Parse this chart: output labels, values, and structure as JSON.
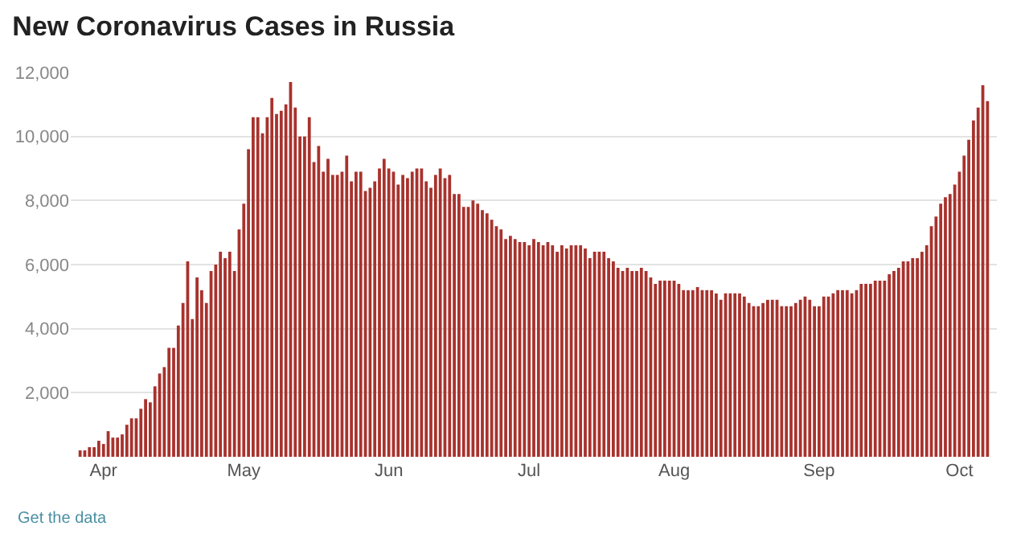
{
  "chart_data": {
    "type": "bar",
    "title": "New Coronavirus Cases in Russia",
    "annotations": [
      "Get the data"
    ],
    "x": [
      "--03-27",
      "--03-28",
      "--03-29",
      "--03-30",
      "--03-31",
      "--04-01",
      "--04-02",
      "--04-03",
      "--04-04",
      "--04-05",
      "--04-06",
      "--04-07",
      "--04-08",
      "--04-09",
      "--04-10",
      "--04-11",
      "--04-12",
      "--04-13",
      "--04-14",
      "--04-15",
      "--04-16",
      "--04-17",
      "--04-18",
      "--04-19",
      "--04-20",
      "--04-21",
      "--04-22",
      "--04-23",
      "--04-24",
      "--04-25",
      "--04-26",
      "--04-27",
      "--04-28",
      "--04-29",
      "--04-30",
      "--05-01",
      "--05-02",
      "--05-03",
      "--05-04",
      "--05-05",
      "--05-06",
      "--05-07",
      "--05-08",
      "--05-09",
      "--05-10",
      "--05-11",
      "--05-12",
      "--05-13",
      "--05-14",
      "--05-15",
      "--05-16",
      "--05-17",
      "--05-18",
      "--05-19",
      "--05-20",
      "--05-21",
      "--05-22",
      "--05-23",
      "--05-24",
      "--05-25",
      "--05-26",
      "--05-27",
      "--05-28",
      "--05-29",
      "--05-30",
      "--05-31",
      "--06-01",
      "--06-02",
      "--06-03",
      "--06-04",
      "--06-05",
      "--06-06",
      "--06-07",
      "--06-08",
      "--06-09",
      "--06-10",
      "--06-11",
      "--06-12",
      "--06-13",
      "--06-14",
      "--06-15",
      "--06-16",
      "--06-17",
      "--06-18",
      "--06-19",
      "--06-20",
      "--06-21",
      "--06-22",
      "--06-23",
      "--06-24",
      "--06-25",
      "--06-26",
      "--06-27",
      "--06-28",
      "--06-29",
      "--06-30",
      "--07-01",
      "--07-02",
      "--07-03",
      "--07-04",
      "--07-05",
      "--07-06",
      "--07-07",
      "--07-08",
      "--07-09",
      "--07-10",
      "--07-11",
      "--07-12",
      "--07-13",
      "--07-14",
      "--07-15",
      "--07-16",
      "--07-17",
      "--07-18",
      "--07-19",
      "--07-20",
      "--07-21",
      "--07-22",
      "--07-23",
      "--07-24",
      "--07-25",
      "--07-26",
      "--07-27",
      "--07-28",
      "--07-29",
      "--07-30",
      "--07-31",
      "--08-01",
      "--08-02",
      "--08-03",
      "--08-04",
      "--08-05",
      "--08-06",
      "--08-07",
      "--08-08",
      "--08-09",
      "--08-10",
      "--08-11",
      "--08-12",
      "--08-13",
      "--08-14",
      "--08-15",
      "--08-16",
      "--08-17",
      "--08-18",
      "--08-19",
      "--08-20",
      "--08-21",
      "--08-22",
      "--08-23",
      "--08-24",
      "--08-25",
      "--08-26",
      "--08-27",
      "--08-28",
      "--08-29",
      "--08-30",
      "--08-31",
      "--09-01",
      "--09-02",
      "--09-03",
      "--09-04",
      "--09-05",
      "--09-06",
      "--09-07",
      "--09-08",
      "--09-09",
      "--09-10",
      "--09-11",
      "--09-12",
      "--09-13",
      "--09-14",
      "--09-15",
      "--09-16",
      "--09-17",
      "--09-18",
      "--09-19",
      "--09-20",
      "--09-21",
      "--09-22",
      "--09-23",
      "--09-24",
      "--09-25",
      "--09-26",
      "--09-27",
      "--09-28",
      "--09-29",
      "--09-30",
      "--10-01",
      "--10-02",
      "--10-03",
      "--10-04",
      "--10-05",
      "--10-06",
      "--10-07"
    ],
    "values": [
      200,
      200,
      300,
      300,
      500,
      400,
      800,
      600,
      600,
      700,
      1000,
      1200,
      1200,
      1500,
      1800,
      1700,
      2200,
      2600,
      2800,
      3400,
      3400,
      4100,
      4800,
      6100,
      4300,
      5600,
      5200,
      4800,
      5800,
      6000,
      6400,
      6200,
      6400,
      5800,
      7100,
      7900,
      9600,
      10600,
      10600,
      10100,
      10600,
      11200,
      10700,
      10800,
      11000,
      11700,
      10900,
      10000,
      10000,
      10600,
      9200,
      9700,
      8900,
      9300,
      8800,
      8800,
      8900,
      9400,
      8600,
      8900,
      8900,
      8300,
      8400,
      8600,
      9000,
      9300,
      9000,
      8900,
      8500,
      8800,
      8700,
      8900,
      9000,
      9000,
      8600,
      8400,
      8800,
      9000,
      8700,
      8800,
      8200,
      8200,
      7800,
      7800,
      8000,
      7900,
      7700,
      7600,
      7400,
      7200,
      7100,
      6800,
      6900,
      6800,
      6700,
      6700,
      6600,
      6800,
      6700,
      6600,
      6700,
      6600,
      6400,
      6600,
      6500,
      6600,
      6600,
      6600,
      6500,
      6200,
      6400,
      6400,
      6400,
      6200,
      6100,
      5900,
      5800,
      5900,
      5800,
      5800,
      5900,
      5800,
      5600,
      5400,
      5500,
      5500,
      5500,
      5500,
      5400,
      5200,
      5200,
      5200,
      5300,
      5200,
      5200,
      5200,
      5100,
      4900,
      5100,
      5100,
      5100,
      5100,
      5000,
      4800,
      4700,
      4700,
      4800,
      4900,
      4900,
      4900,
      4700,
      4700,
      4700,
      4800,
      4900,
      5000,
      4900,
      4700,
      4700,
      5000,
      5000,
      5100,
      5200,
      5200,
      5200,
      5100,
      5200,
      5400,
      5400,
      5400,
      5500,
      5500,
      5500,
      5700,
      5800,
      5900,
      6100,
      6100,
      6200,
      6200,
      6400,
      6600,
      7200,
      7500,
      7900,
      8100,
      8200,
      8500,
      8900,
      9400,
      9900,
      10500,
      10900,
      11600,
      11100
    ],
    "color": "#a8322d",
    "xlim": [
      "--03-25",
      "--10-09"
    ],
    "xticks": [
      {
        "value": "--04-01",
        "label": "Apr"
      },
      {
        "value": "--05-01",
        "label": "May"
      },
      {
        "value": "--06-01",
        "label": "Jun"
      },
      {
        "value": "--07-01",
        "label": "Jul"
      },
      {
        "value": "--08-01",
        "label": "Aug"
      },
      {
        "value": "--09-01",
        "label": "Sep"
      },
      {
        "value": "--10-01",
        "label": "Oct"
      }
    ],
    "ylim": [
      0,
      12000
    ],
    "yticks": [
      {
        "value": 2000,
        "label": "2,000"
      },
      {
        "value": 4000,
        "label": "4,000"
      },
      {
        "value": 6000,
        "label": "6,000"
      },
      {
        "value": 8000,
        "label": "8,000"
      },
      {
        "value": 10000,
        "label": "10,000"
      },
      {
        "value": 12000,
        "label": "12,000"
      }
    ],
    "grid": "y"
  }
}
